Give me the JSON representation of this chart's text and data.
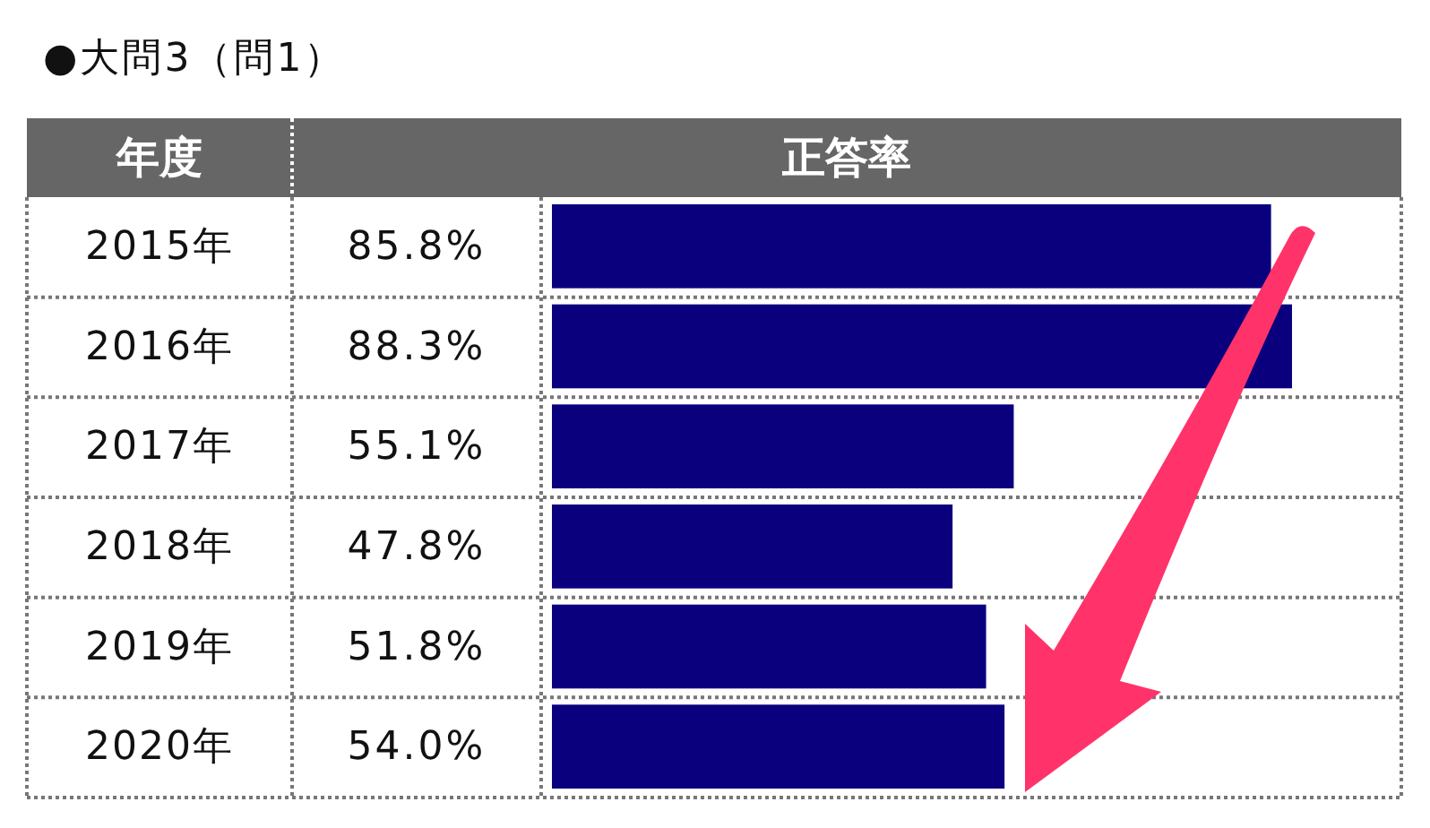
{
  "chart_data": {
    "type": "bar",
    "orientation": "horizontal",
    "title": "●大問3（問1）",
    "ylabel": "年度",
    "xlabel": "正答率",
    "categories": [
      "2015年",
      "2016年",
      "2017年",
      "2018年",
      "2019年",
      "2020年"
    ],
    "values": [
      85.8,
      88.3,
      55.1,
      47.8,
      51.8,
      54.0
    ],
    "value_labels": [
      "85.8%",
      "88.3%",
      "55.1%",
      "47.8%",
      "51.8%",
      "54.0%"
    ],
    "color": "#0a007e",
    "tick_labels": "y"
  }
}
